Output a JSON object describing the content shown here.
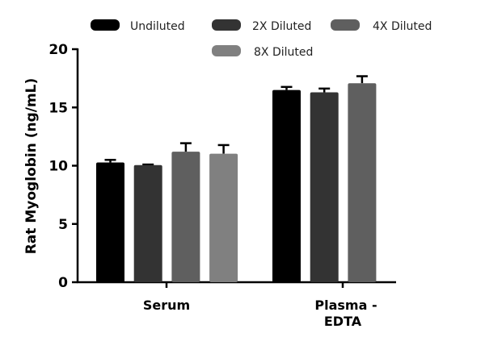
{
  "chart_data": {
    "type": "bar",
    "title": "",
    "xlabel": "",
    "ylabel": "Rat Myoglobin (ng/mL)",
    "ylim": [
      0,
      20
    ],
    "yticks": [
      0,
      5,
      10,
      15,
      20
    ],
    "categories": [
      [
        "Serum"
      ],
      [
        "Plasma -",
        "EDTA"
      ]
    ],
    "legend_position": "top",
    "series": [
      {
        "name": "Undiluted",
        "color": "#000000",
        "values": [
          10.28,
          16.5
        ],
        "errors": [
          0.22,
          0.26
        ]
      },
      {
        "name": "2X Diluted",
        "color": "#333333",
        "values": [
          10.05,
          16.3
        ],
        "errors": [
          0.05,
          0.32
        ]
      },
      {
        "name": "4X Diluted",
        "color": "#5f5f5f",
        "values": [
          11.2,
          17.08
        ],
        "errors": [
          0.73,
          0.6
        ]
      },
      {
        "name": "8X Diluted",
        "color": "#808080",
        "values": [
          11.03,
          null
        ],
        "errors": [
          0.74,
          null
        ]
      }
    ]
  }
}
